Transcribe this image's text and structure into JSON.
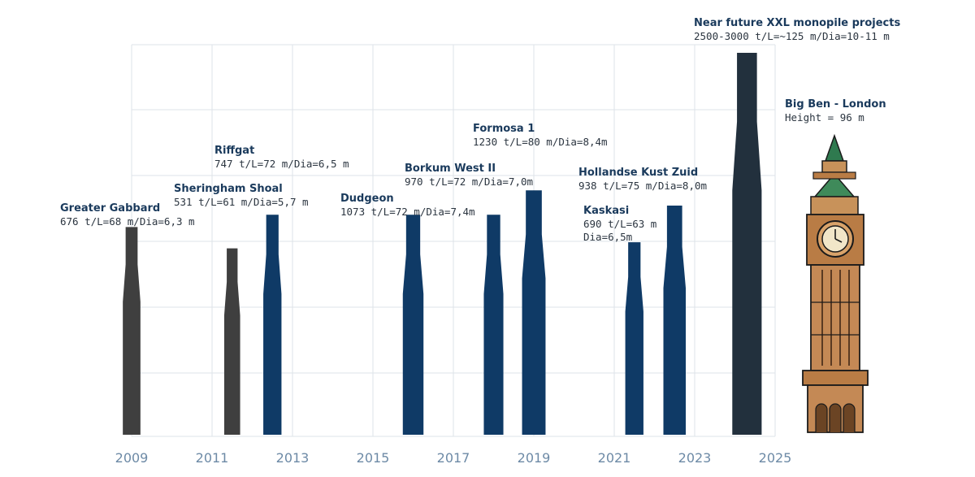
{
  "chart_data": {
    "type": "bar",
    "x_ticks": [
      "2009",
      "2011",
      "2013",
      "2015",
      "2017",
      "2019",
      "2021",
      "2023",
      "2025"
    ],
    "xlim": [
      2009,
      2025
    ],
    "grid": true,
    "colors": {
      "historic": "#3f3f3f",
      "project": "#0f3a66",
      "future": "#22303d"
    },
    "projects": [
      {
        "name": "Greater Gabbard",
        "spec": [
          "676 t/L=68 m/Dia=6,3 m"
        ],
        "year": 2009,
        "length_m": 68,
        "diameter_m": 6.3,
        "category": "historic"
      },
      {
        "name": "Sheringham Shoal",
        "spec": [
          "531 t/L=61 m/Dia=5,7 m"
        ],
        "year": 2011.5,
        "length_m": 61,
        "diameter_m": 5.7,
        "category": "historic"
      },
      {
        "name": "Riffgat",
        "spec": [
          "747 t/L=72 m/Dia=6,5 m"
        ],
        "year": 2012.5,
        "length_m": 72,
        "diameter_m": 6.5,
        "category": "project"
      },
      {
        "name": "Dudgeon",
        "spec": [
          "1073 t/L=72 m/Dia=7,4m"
        ],
        "year": 2016,
        "length_m": 72,
        "diameter_m": 7.4,
        "category": "project"
      },
      {
        "name": "Borkum West II",
        "spec": [
          "970 t/L=72 m/Dia=7,0m"
        ],
        "year": 2018,
        "length_m": 72,
        "diameter_m": 7.0,
        "category": "project"
      },
      {
        "name": "Formosa 1",
        "spec": [
          "1230 t/L=80 m/Dia=8,4m"
        ],
        "year": 2019,
        "length_m": 80,
        "diameter_m": 8.4,
        "category": "project"
      },
      {
        "name": "Kaskasi",
        "spec": [
          "690 t/L=63 m",
          "Dia=6,5m"
        ],
        "year": 2021.5,
        "length_m": 63,
        "diameter_m": 6.5,
        "category": "project"
      },
      {
        "name": "Hollandse Kust Zuid",
        "spec": [
          "938 t/L=75 m/Dia=8,0m"
        ],
        "year": 2022.5,
        "length_m": 75,
        "diameter_m": 8.0,
        "category": "project"
      },
      {
        "name": "Near future XXL monopile projects",
        "spec": [
          "2500-3000 t/L=~125 m/Dia=10-11 m"
        ],
        "year": 2024.3,
        "length_m": 125,
        "diameter_m": 10.5,
        "category": "future"
      }
    ],
    "reference": {
      "name": "Big Ben - London",
      "spec": "Height = 96 m",
      "height_m": 96,
      "icon": "big-ben-tower-icon"
    }
  }
}
